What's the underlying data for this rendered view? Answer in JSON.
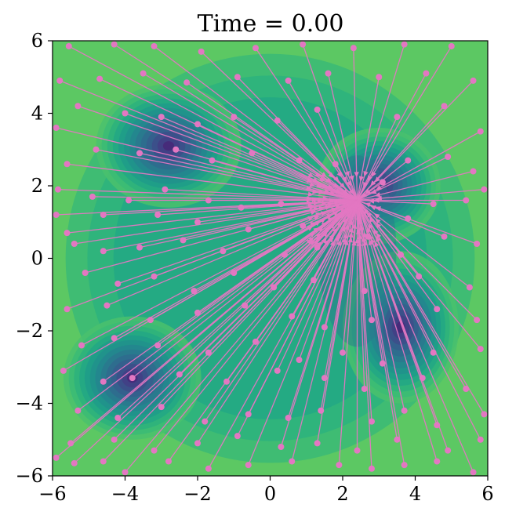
{
  "chart_data": {
    "type": "scatter",
    "title": "Time = 0.00",
    "xlabel": "",
    "ylabel": "",
    "xlim": [
      -6,
      6
    ],
    "ylim": [
      -6,
      6
    ],
    "x_ticks": [
      -6,
      -4,
      -2,
      0,
      2,
      4,
      6
    ],
    "y_ticks": [
      -6,
      -4,
      -2,
      0,
      2,
      4,
      6
    ],
    "x_tick_labels": [
      "−6",
      "−4",
      "−2",
      "0",
      "2",
      "4",
      "6"
    ],
    "y_tick_labels": [
      "−6",
      "−4",
      "−2",
      "0",
      "2",
      "4",
      "6"
    ],
    "grid": false,
    "background": "filled contour of a potential with four minima",
    "minima": [
      {
        "x": -3.8,
        "y": -3.3
      },
      {
        "x": -2.8,
        "y": 3.1
      },
      {
        "x": 3.0,
        "y": 2.0
      },
      {
        "x": 3.6,
        "y": -1.9
      }
    ],
    "arrow_target": {
      "x": 2.4,
      "y": 1.6
    },
    "colors": {
      "particles": "#e377c2",
      "contour_low": "#440154",
      "contour_mid": "#21918c",
      "contour_high": "#95d840"
    },
    "particles": [
      [
        -5.55,
        5.85
      ],
      [
        -4.3,
        5.9
      ],
      [
        -3.2,
        5.85
      ],
      [
        -1.9,
        5.7
      ],
      [
        -0.4,
        5.8
      ],
      [
        0.9,
        5.9
      ],
      [
        2.3,
        5.8
      ],
      [
        3.7,
        5.9
      ],
      [
        5.0,
        5.85
      ],
      [
        -5.8,
        4.9
      ],
      [
        -4.7,
        4.95
      ],
      [
        -3.5,
        5.1
      ],
      [
        -2.3,
        4.85
      ],
      [
        -0.9,
        5.0
      ],
      [
        0.5,
        4.9
      ],
      [
        1.6,
        5.1
      ],
      [
        3.0,
        5.0
      ],
      [
        4.3,
        5.1
      ],
      [
        5.6,
        4.9
      ],
      [
        -5.9,
        3.6
      ],
      [
        -5.3,
        4.2
      ],
      [
        -4.0,
        4.0
      ],
      [
        -3.0,
        3.9
      ],
      [
        -2.0,
        3.7
      ],
      [
        -1.0,
        3.9
      ],
      [
        0.2,
        3.8
      ],
      [
        1.3,
        4.1
      ],
      [
        3.5,
        3.9
      ],
      [
        4.8,
        4.2
      ],
      [
        5.8,
        3.5
      ],
      [
        -5.6,
        2.6
      ],
      [
        -4.8,
        3.0
      ],
      [
        -3.6,
        2.9
      ],
      [
        -2.6,
        3.0
      ],
      [
        -1.6,
        2.7
      ],
      [
        -0.5,
        2.9
      ],
      [
        0.8,
        2.7
      ],
      [
        1.8,
        2.6
      ],
      [
        3.8,
        2.7
      ],
      [
        4.9,
        2.8
      ],
      [
        5.6,
        2.4
      ],
      [
        -5.85,
        1.9
      ],
      [
        -4.9,
        1.7
      ],
      [
        -3.9,
        1.6
      ],
      [
        -2.9,
        1.9
      ],
      [
        -1.7,
        1.6
      ],
      [
        -0.8,
        1.4
      ],
      [
        0.3,
        1.5
      ],
      [
        3.1,
        2.1
      ],
      [
        4.5,
        1.5
      ],
      [
        5.4,
        1.6
      ],
      [
        5.9,
        1.9
      ],
      [
        -5.9,
        1.2
      ],
      [
        -4.6,
        1.2
      ],
      [
        -3.1,
        1.2
      ],
      [
        -2.0,
        1.0
      ],
      [
        -0.6,
        0.8
      ],
      [
        0.9,
        0.9
      ],
      [
        3.8,
        1.1
      ],
      [
        4.8,
        0.6
      ],
      [
        5.7,
        0.4
      ],
      [
        -5.6,
        0.7
      ],
      [
        -5.4,
        0.4
      ],
      [
        -4.6,
        0.2
      ],
      [
        -3.6,
        0.3
      ],
      [
        -2.4,
        0.5
      ],
      [
        -1.3,
        0.2
      ],
      [
        0.4,
        0.1
      ],
      [
        1.3,
        0.3
      ],
      [
        2.7,
        0.6
      ],
      [
        3.6,
        0.1
      ],
      [
        -5.1,
        -0.4
      ],
      [
        -4.2,
        -0.7
      ],
      [
        -3.2,
        -0.5
      ],
      [
        -2.1,
        -0.9
      ],
      [
        -1.0,
        -0.4
      ],
      [
        0.1,
        -0.8
      ],
      [
        1.2,
        -0.6
      ],
      [
        2.6,
        -0.9
      ],
      [
        4.1,
        -0.5
      ],
      [
        5.5,
        -0.8
      ],
      [
        -5.6,
        -1.4
      ],
      [
        -4.5,
        -1.3
      ],
      [
        -3.3,
        -1.7
      ],
      [
        -2.0,
        -1.5
      ],
      [
        -0.7,
        -1.3
      ],
      [
        0.6,
        -1.6
      ],
      [
        1.5,
        -1.9
      ],
      [
        2.8,
        -1.7
      ],
      [
        4.6,
        -1.4
      ],
      [
        5.7,
        -1.7
      ],
      [
        -5.2,
        -2.4
      ],
      [
        -4.3,
        -2.2
      ],
      [
        -3.1,
        -2.4
      ],
      [
        -1.7,
        -2.6
      ],
      [
        -0.4,
        -2.3
      ],
      [
        0.8,
        -2.8
      ],
      [
        2.0,
        -2.6
      ],
      [
        3.1,
        -2.9
      ],
      [
        4.5,
        -2.6
      ],
      [
        5.8,
        -2.5
      ],
      [
        -5.7,
        -3.1
      ],
      [
        -4.6,
        -3.4
      ],
      [
        -3.8,
        -3.3
      ],
      [
        -2.5,
        -3.2
      ],
      [
        -1.2,
        -3.4
      ],
      [
        0.2,
        -3.1
      ],
      [
        1.5,
        -3.3
      ],
      [
        2.6,
        -3.6
      ],
      [
        4.2,
        -3.3
      ],
      [
        5.4,
        -3.6
      ],
      [
        -5.3,
        -4.2
      ],
      [
        -4.2,
        -4.4
      ],
      [
        -3.0,
        -4.1
      ],
      [
        -1.8,
        -4.5
      ],
      [
        -0.6,
        -4.3
      ],
      [
        0.5,
        -4.4
      ],
      [
        1.4,
        -4.2
      ],
      [
        2.8,
        -4.5
      ],
      [
        3.7,
        -4.2
      ],
      [
        4.6,
        -4.6
      ],
      [
        5.9,
        -4.3
      ],
      [
        -5.5,
        -5.1
      ],
      [
        -4.3,
        -5.0
      ],
      [
        -3.2,
        -5.3
      ],
      [
        -2.0,
        -5.1
      ],
      [
        -0.9,
        -4.9
      ],
      [
        0.3,
        -5.2
      ],
      [
        1.3,
        -5.1
      ],
      [
        2.4,
        -5.3
      ],
      [
        3.5,
        -5.0
      ],
      [
        4.9,
        -5.3
      ],
      [
        5.8,
        -5.0
      ],
      [
        -5.9,
        -5.5
      ],
      [
        -5.4,
        -5.65
      ],
      [
        -4.6,
        -5.6
      ],
      [
        -4.0,
        -5.9
      ],
      [
        -2.8,
        -5.6
      ],
      [
        -1.7,
        -5.8
      ],
      [
        -0.6,
        -5.7
      ],
      [
        0.6,
        -5.6
      ],
      [
        1.9,
        -5.7
      ],
      [
        2.8,
        -5.8
      ],
      [
        3.7,
        -5.7
      ],
      [
        4.6,
        -5.6
      ],
      [
        5.6,
        -5.9
      ]
    ]
  }
}
